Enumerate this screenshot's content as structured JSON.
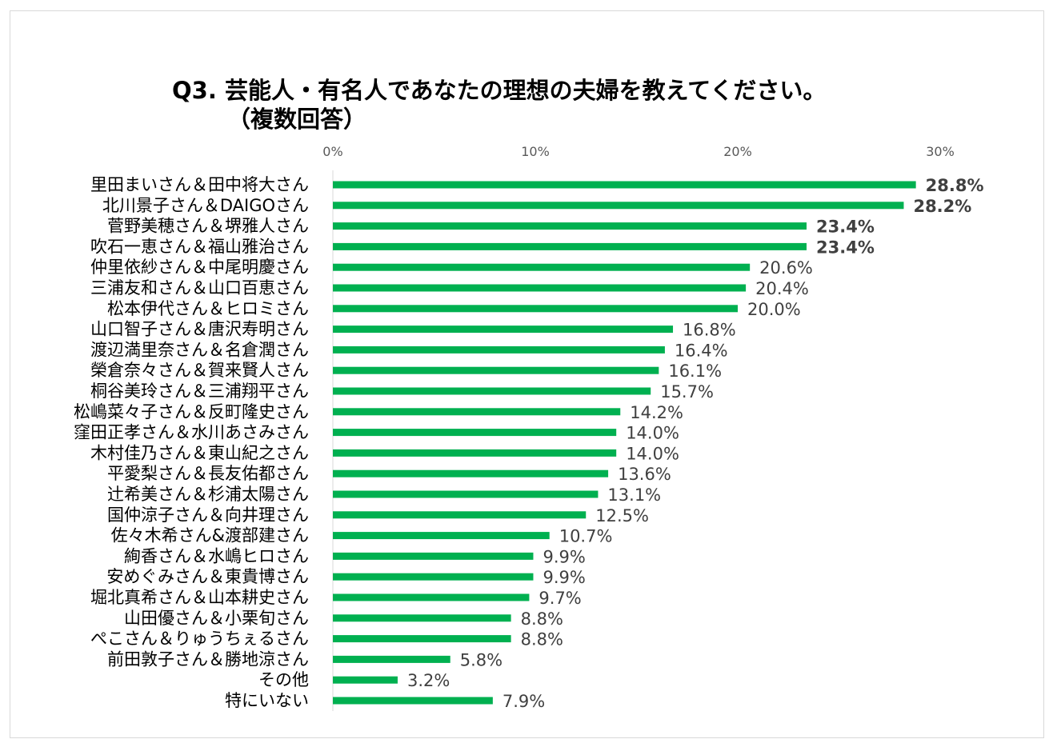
{
  "title_line1": "Q3. 芸能人・有名人であなたの理想の夫婦を教えてください。",
  "title_line2": "（複数回答）",
  "chart_data": {
    "type": "bar",
    "orientation": "horizontal",
    "title": "Q3. 芸能人・有名人であなたの理想の夫婦を教えてください。（複数回答）",
    "xlabel": "",
    "ylabel": "",
    "xlim": [
      0,
      30
    ],
    "x_ticks": [
      0,
      10,
      20,
      30
    ],
    "x_tick_labels": [
      "0%",
      "10%",
      "20%",
      "30%"
    ],
    "bar_color": "#00b050",
    "categories": [
      "里田まいさん＆田中将大さん",
      "北川景子さん＆DAIGOさん",
      "菅野美穂さん＆堺雅人さん",
      "吹石一恵さん＆福山雅治さん",
      "仲里依紗さん＆中尾明慶さん",
      "三浦友和さん＆山口百恵さん",
      "松本伊代さん＆ヒロミさん",
      "山口智子さん＆唐沢寿明さん",
      "渡辺満里奈さん＆名倉潤さん",
      "榮倉奈々さん＆賀来賢人さん",
      "桐谷美玲さん＆三浦翔平さん",
      "松嶋菜々子さん＆反町隆史さん",
      "窪田正孝さん＆水川あさみさん",
      "木村佳乃さん＆東山紀之さん",
      "平愛梨さん＆長友佑都さん",
      "辻希美さん＆杉浦太陽さん",
      "国仲涼子さん＆向井理さん",
      "佐々木希さん&渡部建さん",
      "絢香さん＆水嶋ヒロさん",
      "安めぐみさん＆東貴博さん",
      "堀北真希さん＆山本耕史さん",
      "山田優さん＆小栗旬さん",
      "ぺこさん＆りゅうちぇるさん",
      "前田敦子さん＆勝地涼さん",
      "その他",
      "特にいない"
    ],
    "values": [
      28.8,
      28.2,
      23.4,
      23.4,
      20.6,
      20.4,
      20.0,
      16.8,
      16.4,
      16.1,
      15.7,
      14.2,
      14.0,
      14.0,
      13.6,
      13.1,
      12.5,
      10.7,
      9.9,
      9.9,
      9.7,
      8.8,
      8.8,
      5.8,
      3.2,
      7.9
    ],
    "value_labels": [
      "28.8%",
      "28.2%",
      "23.4%",
      "23.4%",
      "20.6%",
      "20.4%",
      "20.0%",
      "16.8%",
      "16.4%",
      "16.1%",
      "15.7%",
      "14.2%",
      "14.0%",
      "14.0%",
      "13.6%",
      "13.1%",
      "12.5%",
      "10.7%",
      "9.9%",
      "9.9%",
      "9.7%",
      "8.8%",
      "8.8%",
      "5.8%",
      "3.2%",
      "7.9%"
    ],
    "bold_labels": [
      true,
      true,
      true,
      true,
      false,
      false,
      false,
      false,
      false,
      false,
      false,
      false,
      false,
      false,
      false,
      false,
      false,
      false,
      false,
      false,
      false,
      false,
      false,
      false,
      false,
      false
    ],
    "grid": false
  }
}
